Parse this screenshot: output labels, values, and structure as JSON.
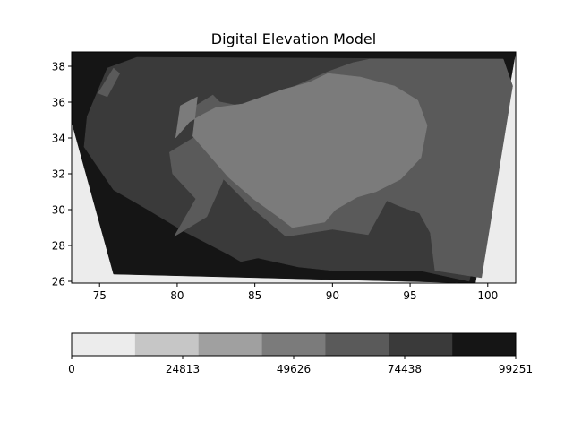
{
  "chart_data": {
    "type": "heatmap",
    "title": "Digital Elevation Model",
    "xlabel": "",
    "ylabel": "",
    "xlim": [
      73.2,
      101.8
    ],
    "ylim": [
      25.9,
      38.8
    ],
    "x_ticks": [
      75,
      80,
      85,
      90,
      95,
      100
    ],
    "x_tick_labels": [
      "75",
      "80",
      "85",
      "90",
      "95",
      "100"
    ],
    "y_ticks": [
      26,
      28,
      30,
      32,
      34,
      36,
      38
    ],
    "y_tick_labels": [
      "26",
      "28",
      "30",
      "32",
      "34",
      "36",
      "38"
    ],
    "colorbar": {
      "orientation": "horizontal",
      "range": [
        0,
        99251
      ],
      "tick_values": [
        0,
        24813,
        49626,
        74438,
        99251
      ],
      "tick_labels": [
        "0",
        "24813",
        "49626",
        "74438",
        "99251"
      ],
      "levels": [
        0,
        14179,
        28357,
        42536,
        56715,
        70893,
        85072,
        99251
      ],
      "colors": [
        "#ececec",
        "#c6c6c6",
        "#a0a0a0",
        "#7b7b7b",
        "#5a5a5a",
        "#3a3a3a",
        "#151515"
      ]
    },
    "background_color": "#ececec",
    "grid": false,
    "regions": [
      {
        "level": 6,
        "color": "#151515",
        "points": [
          [
            73.2,
            34.9
          ],
          [
            75.9,
            26.4
          ],
          [
            99.2,
            25.9
          ],
          [
            101.8,
            38.8
          ],
          [
            73.2,
            38.8
          ]
        ]
      },
      {
        "level": 5,
        "color": "#3a3a3a",
        "points": [
          [
            74.2,
            35.2
          ],
          [
            75.5,
            37.9
          ],
          [
            77.4,
            38.5
          ],
          [
            101.0,
            38.4
          ],
          [
            101.6,
            36.9
          ],
          [
            98.8,
            26.0
          ],
          [
            95.6,
            26.6
          ],
          [
            90.0,
            26.6
          ],
          [
            87.8,
            26.8
          ],
          [
            85.2,
            27.3
          ],
          [
            84.1,
            27.1
          ],
          [
            83.3,
            27.5
          ],
          [
            80.4,
            28.8
          ],
          [
            78.1,
            30.0
          ],
          [
            75.9,
            31.1
          ],
          [
            74.0,
            33.5
          ]
        ]
      },
      {
        "level": 4,
        "color": "#5a5a5a",
        "points": [
          [
            92.4,
            38.4
          ],
          [
            101.0,
            38.4
          ],
          [
            101.6,
            36.9
          ],
          [
            99.6,
            26.2
          ],
          [
            96.6,
            26.6
          ],
          [
            96.3,
            28.7
          ],
          [
            95.6,
            29.8
          ],
          [
            94.3,
            30.2
          ],
          [
            93.5,
            30.5
          ],
          [
            92.3,
            28.6
          ],
          [
            90.0,
            28.9
          ],
          [
            87.0,
            28.5
          ],
          [
            84.8,
            30.1
          ],
          [
            82.4,
            32.2
          ],
          [
            81.5,
            34.0
          ],
          [
            82.2,
            36.1
          ],
          [
            84.0,
            35.8
          ],
          [
            86.3,
            36.4
          ],
          [
            89.7,
            37.7
          ],
          [
            91.3,
            38.2
          ]
        ]
      },
      {
        "level": 4,
        "color": "#5a5a5a",
        "points": [
          [
            74.9,
            36.5
          ],
          [
            75.9,
            37.9
          ],
          [
            76.3,
            37.6
          ],
          [
            75.5,
            36.3
          ]
        ]
      },
      {
        "level": 4,
        "color": "#5a5a5a",
        "points": [
          [
            79.8,
            28.5
          ],
          [
            81.2,
            30.6
          ],
          [
            79.7,
            32.0
          ],
          [
            79.5,
            33.2
          ],
          [
            81.4,
            34.2
          ],
          [
            81.0,
            35.7
          ],
          [
            82.3,
            36.4
          ],
          [
            83.2,
            35.6
          ],
          [
            83.6,
            33.4
          ],
          [
            82.9,
            31.5
          ],
          [
            81.9,
            29.6
          ]
        ]
      },
      {
        "level": 3,
        "color": "#7b7b7b",
        "points": [
          [
            79.9,
            34.0
          ],
          [
            80.2,
            35.8
          ],
          [
            81.3,
            36.3
          ],
          [
            81.0,
            34.1
          ],
          [
            82.1,
            33.0
          ],
          [
            83.3,
            31.8
          ],
          [
            84.9,
            30.6
          ],
          [
            86.5,
            29.6
          ],
          [
            87.4,
            29.0
          ],
          [
            89.5,
            29.3
          ],
          [
            90.2,
            30.0
          ],
          [
            91.6,
            30.7
          ],
          [
            92.8,
            31.0
          ],
          [
            94.4,
            31.7
          ],
          [
            95.7,
            32.9
          ],
          [
            96.1,
            34.7
          ],
          [
            95.5,
            36.1
          ],
          [
            94.0,
            36.9
          ],
          [
            91.8,
            37.4
          ],
          [
            89.7,
            37.6
          ],
          [
            88.5,
            37.1
          ],
          [
            86.8,
            36.7
          ],
          [
            85.5,
            36.3
          ],
          [
            84.2,
            35.9
          ],
          [
            82.5,
            35.7
          ],
          [
            81.6,
            35.3
          ],
          [
            80.8,
            34.9
          ]
        ]
      }
    ]
  }
}
